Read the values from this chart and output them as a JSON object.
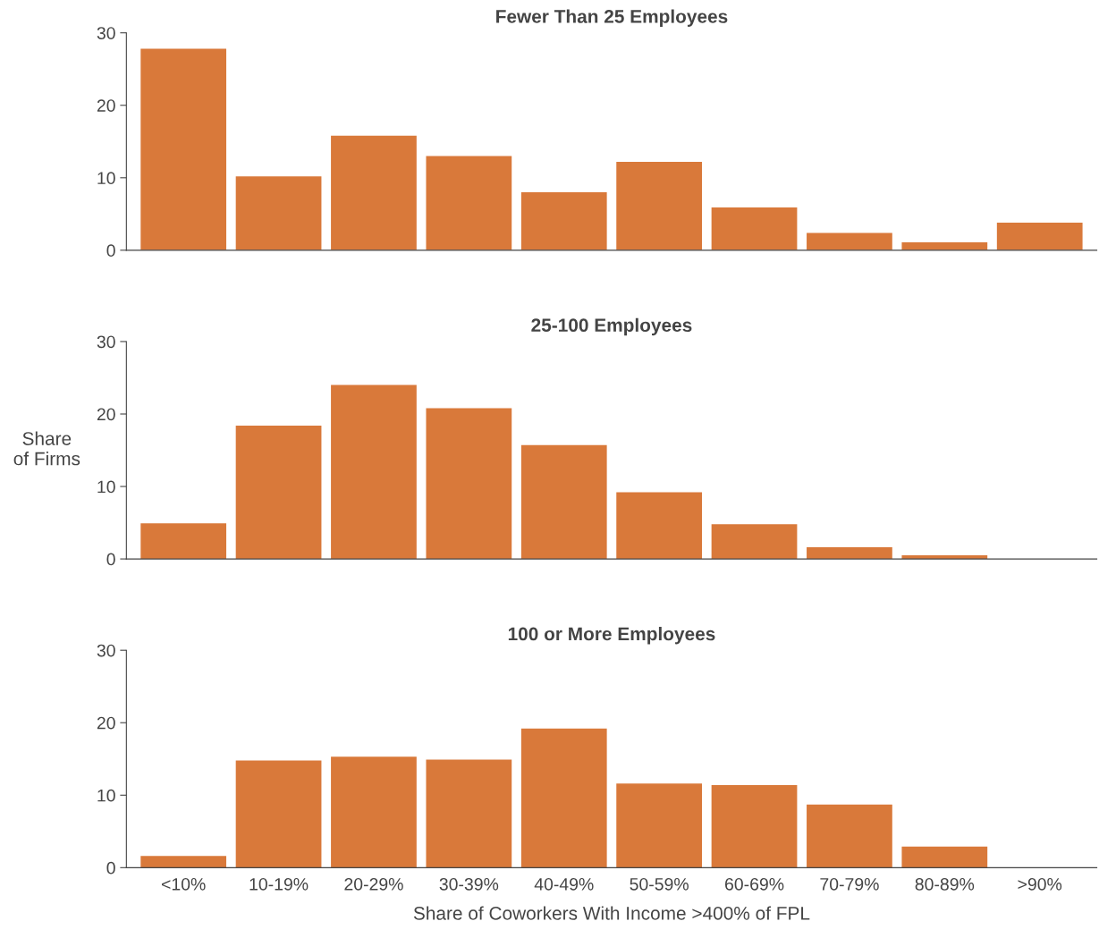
{
  "chart_data": [
    {
      "type": "bar",
      "title": "Fewer Than 25 Employees",
      "categories": [
        null,
        null,
        null,
        null,
        null,
        null,
        null,
        null,
        null,
        null
      ],
      "values": [
        27.8,
        10.2,
        15.8,
        13.0,
        8.0,
        12.2,
        5.9,
        2.4,
        1.1,
        3.8
      ],
      "color": "#d9793a",
      "ylim": [
        0,
        30
      ],
      "yticks": [
        0,
        10,
        20,
        30
      ],
      "tick_labels": "y",
      "grid": false,
      "legend": false
    },
    {
      "type": "bar",
      "title": "25-100 Employees",
      "ylabel": "Share\nof Firms",
      "categories": [
        null,
        null,
        null,
        null,
        null,
        null,
        null,
        null,
        null,
        null
      ],
      "values": [
        4.9,
        18.4,
        24.0,
        20.8,
        15.7,
        9.2,
        4.8,
        1.6,
        0.5,
        0
      ],
      "color": "#d9793a",
      "ylim": [
        0,
        30
      ],
      "yticks": [
        0,
        10,
        20,
        30
      ],
      "tick_labels": "y",
      "grid": false,
      "legend": false
    },
    {
      "type": "bar",
      "title": "100 or More Employees",
      "xlabel": "Share of Coworkers With Income >400% of FPL",
      "categories": [
        "<10%",
        "10-19%",
        "20-29%",
        "30-39%",
        "40-49%",
        "50-59%",
        "60-69%",
        "70-79%",
        "80-89%",
        ">90%"
      ],
      "values": [
        1.6,
        14.8,
        15.3,
        14.9,
        19.2,
        11.6,
        11.4,
        8.7,
        2.9,
        0
      ],
      "color": "#d9793a",
      "ylim": [
        0,
        30
      ],
      "yticks": [
        0,
        10,
        20,
        30
      ],
      "grid": false,
      "legend": false
    }
  ]
}
